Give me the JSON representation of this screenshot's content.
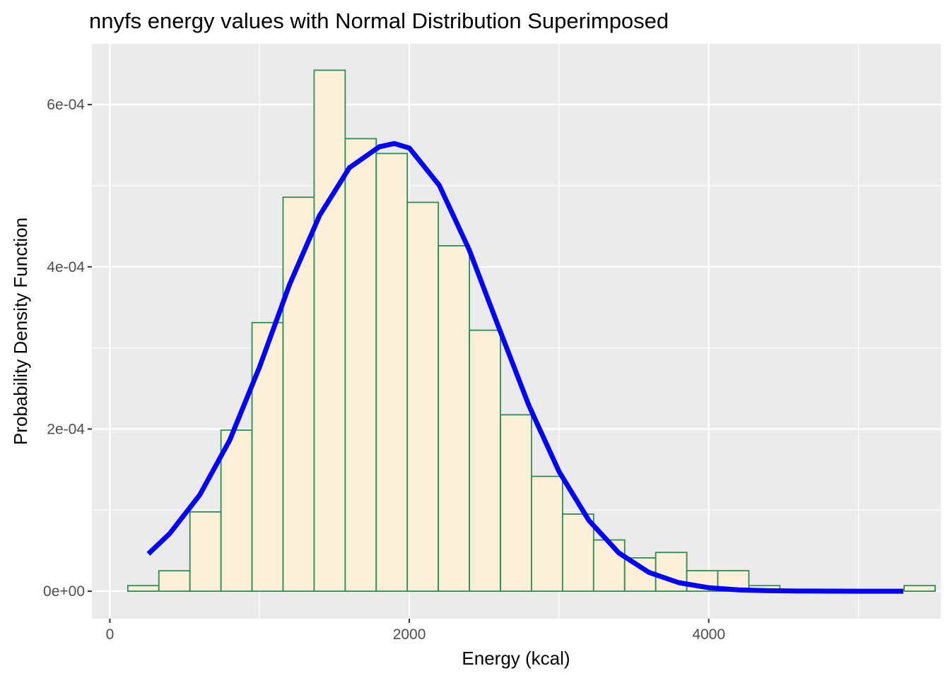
{
  "chart_data": {
    "type": "bar",
    "title": "nnyfs energy values with Normal Distribution Superimposed",
    "xlabel": "Energy (kcal)",
    "ylabel": "Probability Density Function",
    "xlim": [
      -120,
      5550
    ],
    "ylim": [
      -3.387e-05,
      0.000675
    ],
    "x_ticks": [
      0,
      2000,
      4000
    ],
    "x_tick_labels": [
      "0",
      "2000",
      "4000"
    ],
    "y_ticks": [
      0,
      0.0002,
      0.0004,
      0.0006
    ],
    "y_tick_labels": [
      "0e+00",
      "2e-04",
      "4e-04",
      "6e-04"
    ],
    "x_minor_ticks": [
      1000,
      3000,
      5000
    ],
    "y_minor_ticks": [
      0.0001,
      0.0003,
      0.0005
    ],
    "grid": true,
    "legend": "none",
    "panel_background": "#ebebeb",
    "histogram": {
      "bin_width": 207.4,
      "bin_start": 120,
      "fill": "#fdf0d8",
      "outline": "#2e8b57",
      "densities": [
        6.9e-06,
        2.52e-05,
        9.78e-05,
        0.0001986,
        0.0003312,
        0.0004858,
        0.0006424,
        0.000558,
        0.0005397,
        0.0004795,
        0.0004259,
        0.0003218,
        0.0002175,
        0.0001416,
        9.51e-05,
        6.32e-05,
        4.11e-05,
        4.78e-05,
        2.53e-05,
        2.53e-05,
        6.9e-06,
        0,
        0,
        0,
        0,
        6.9e-06
      ]
    },
    "series": [
      {
        "type": "line",
        "color": "#0000ff",
        "x": [
          257,
          400,
          600,
          800,
          1000,
          1200,
          1400,
          1600,
          1800,
          1900,
          2000,
          2200,
          2400,
          2600,
          2800,
          3000,
          3200,
          3400,
          3600,
          3800,
          4000,
          4200,
          4400,
          4600,
          4800,
          5000,
          5200,
          5300
        ],
        "y": [
          4.61e-05,
          7.11e-05,
          0.0001186,
          0.000186,
          0.0002765,
          0.000378,
          0.0004631,
          0.0005222,
          0.000548,
          0.000552,
          0.0005465,
          0.0005006,
          0.000421,
          0.0003241,
          0.0002285,
          0.0001475,
          8.72e-05,
          4.71e-05,
          2.33e-05,
          1.05e-05,
          4.3e-06,
          1.6e-06,
          6e-07,
          2e-07,
          1e-07,
          0,
          0,
          0
        ]
      }
    ]
  }
}
